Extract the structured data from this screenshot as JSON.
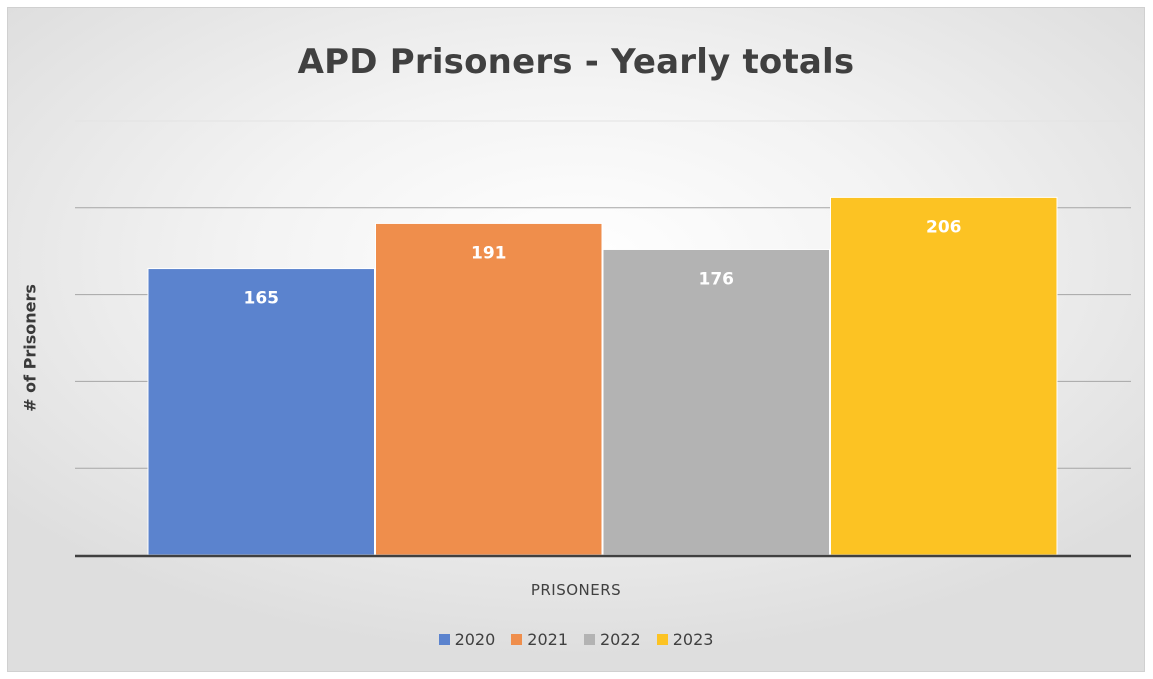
{
  "chart_data": {
    "type": "bar",
    "title": "APD Prisoners - Yearly totals",
    "xlabel": "PRISONERS",
    "ylabel": "# of Prisoners",
    "ylim": [
      0,
      250
    ],
    "grid": true,
    "legend_position": "bottom",
    "categories": [
      ""
    ],
    "series": [
      {
        "name": "2020",
        "values": [
          165
        ],
        "color": "#5b83ce"
      },
      {
        "name": "2021",
        "values": [
          191
        ],
        "color": "#ef8e4c"
      },
      {
        "name": "2022",
        "values": [
          176
        ],
        "color": "#b3b3b3"
      },
      {
        "name": "2023",
        "values": [
          206
        ],
        "color": "#fcc323"
      }
    ]
  }
}
